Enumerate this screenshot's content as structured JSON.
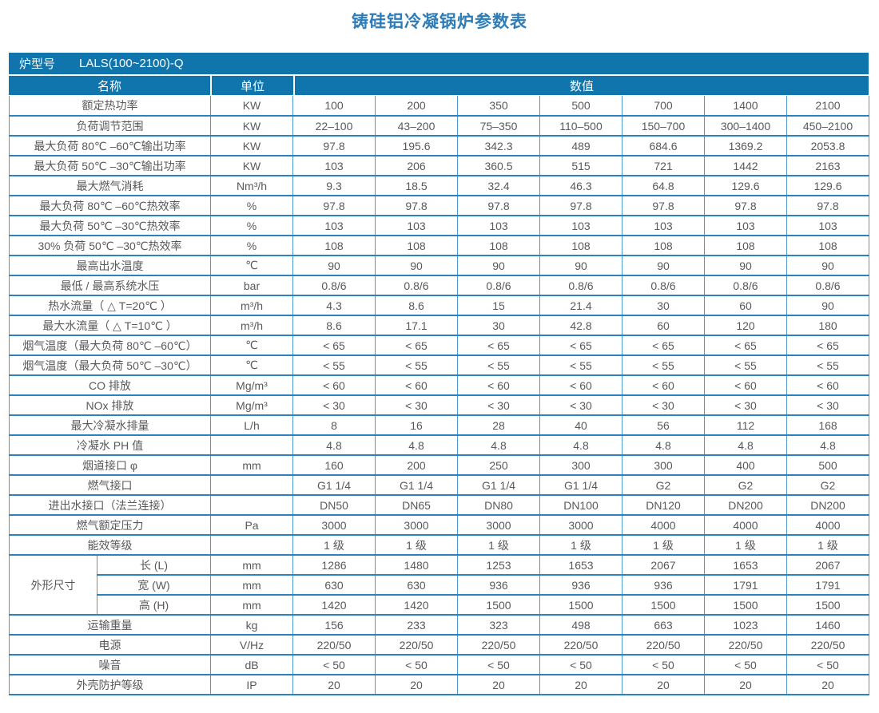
{
  "title": "铸硅铝冷凝锅炉参数表",
  "colors": {
    "header_bg": "#1175ad",
    "border_horizontal": "#2e81c1",
    "border_vertical": "#4e9bd1",
    "body_text": "#58595b",
    "title_text": "#2e7cb8"
  },
  "header": {
    "model_label": "炉型号",
    "model_value": "LALS(100~2100)-Q",
    "col_name": "名称",
    "col_unit": "单位",
    "col_values": "数值"
  },
  "table": {
    "rows": [
      {
        "name": "额定热功率",
        "unit": "KW",
        "values": [
          "100",
          "200",
          "350",
          "500",
          "700",
          "1400",
          "2100"
        ]
      },
      {
        "name": "负荷调节范围",
        "unit": "KW",
        "values": [
          "22–100",
          "43–200",
          "75–350",
          "110–500",
          "150–700",
          "300–1400",
          "450–2100"
        ]
      },
      {
        "name": "最大负荷 80℃ –60℃输出功率",
        "unit": "KW",
        "values": [
          "97.8",
          "195.6",
          "342.3",
          "489",
          "684.6",
          "1369.2",
          "2053.8"
        ]
      },
      {
        "name": "最大负荷 50℃ –30℃输出功率",
        "unit": "KW",
        "values": [
          "103",
          "206",
          "360.5",
          "515",
          "721",
          "1442",
          "2163"
        ]
      },
      {
        "name": "最大燃气消耗",
        "unit": "Nm³/h",
        "values": [
          "9.3",
          "18.5",
          "32.4",
          "46.3",
          "64.8",
          "129.6",
          "129.6"
        ]
      },
      {
        "name": "最大负荷 80℃ –60℃热效率",
        "unit": "%",
        "values": [
          "97.8",
          "97.8",
          "97.8",
          "97.8",
          "97.8",
          "97.8",
          "97.8"
        ]
      },
      {
        "name": "最大负荷 50℃ –30℃热效率",
        "unit": "%",
        "values": [
          "103",
          "103",
          "103",
          "103",
          "103",
          "103",
          "103"
        ]
      },
      {
        "name": "30% 负荷 50℃ –30℃热效率",
        "unit": "%",
        "values": [
          "108",
          "108",
          "108",
          "108",
          "108",
          "108",
          "108"
        ]
      },
      {
        "name": "最高出水温度",
        "unit": "℃",
        "values": [
          "90",
          "90",
          "90",
          "90",
          "90",
          "90",
          "90"
        ]
      },
      {
        "name": "最低 / 最高系统水压",
        "unit": "bar",
        "values": [
          "0.8/6",
          "0.8/6",
          "0.8/6",
          "0.8/6",
          "0.8/6",
          "0.8/6",
          "0.8/6"
        ]
      },
      {
        "name": "热水流量（ △ T=20℃ ）",
        "unit": "m³/h",
        "values": [
          "4.3",
          "8.6",
          "15",
          "21.4",
          "30",
          "60",
          "90"
        ]
      },
      {
        "name": "最大水流量（ △ T=10℃ ）",
        "unit": "m³/h",
        "values": [
          "8.6",
          "17.1",
          "30",
          "42.8",
          "60",
          "120",
          "180"
        ]
      },
      {
        "name": "烟气温度（最大负荷 80℃ –60℃）",
        "unit": "℃",
        "values": [
          "< 65",
          "< 65",
          "< 65",
          "< 65",
          "< 65",
          "< 65",
          "< 65"
        ]
      },
      {
        "name": "烟气温度（最大负荷 50℃ –30℃）",
        "unit": "℃",
        "values": [
          "< 55",
          "< 55",
          "< 55",
          "< 55",
          "< 55",
          "< 55",
          "< 55"
        ]
      },
      {
        "name": "CO 排放",
        "unit": "Mg/m³",
        "values": [
          "< 60",
          "< 60",
          "< 60",
          "< 60",
          "< 60",
          "< 60",
          "< 60"
        ]
      },
      {
        "name": "NOx 排放",
        "unit": "Mg/m³",
        "values": [
          "< 30",
          "< 30",
          "< 30",
          "< 30",
          "< 30",
          "< 30",
          "< 30"
        ]
      },
      {
        "name": "最大冷凝水排量",
        "unit": "L/h",
        "values": [
          "8",
          "16",
          "28",
          "40",
          "56",
          "112",
          "168"
        ]
      },
      {
        "name": "冷凝水 PH 值",
        "unit": "",
        "values": [
          "4.8",
          "4.8",
          "4.8",
          "4.8",
          "4.8",
          "4.8",
          "4.8"
        ]
      },
      {
        "name": "烟道接口 φ",
        "unit": "mm",
        "values": [
          "160",
          "200",
          "250",
          "300",
          "300",
          "400",
          "500"
        ]
      },
      {
        "name": "燃气接口",
        "unit": "",
        "values": [
          "G1 1/4",
          "G1 1/4",
          "G1 1/4",
          "G1 1/4",
          "G2",
          "G2",
          "G2"
        ]
      },
      {
        "name": "进出水接口（法兰连接）",
        "unit": "",
        "values": [
          "DN50",
          "DN65",
          "DN80",
          "DN100",
          "DN120",
          "DN200",
          "DN200"
        ]
      },
      {
        "name": "燃气额定压力",
        "unit": "Pa",
        "values": [
          "3000",
          "3000",
          "3000",
          "3000",
          "4000",
          "4000",
          "4000"
        ]
      },
      {
        "name": "能效等级",
        "unit": "",
        "values": [
          "1 级",
          "1 级",
          "1 级",
          "1 级",
          "1 级",
          "1 级",
          "1 级"
        ]
      },
      {
        "group": "外形尺寸",
        "group_span": 3,
        "sub": true,
        "name": "长 (L)",
        "unit": "mm",
        "values": [
          "1286",
          "1480",
          "1253",
          "1653",
          "2067",
          "1653",
          "2067"
        ]
      },
      {
        "sub": true,
        "name": "宽 (W)",
        "unit": "mm",
        "values": [
          "630",
          "630",
          "936",
          "936",
          "936",
          "1791",
          "1791"
        ]
      },
      {
        "sub": true,
        "name": "高 (H)",
        "unit": "mm",
        "values": [
          "1420",
          "1420",
          "1500",
          "1500",
          "1500",
          "1500",
          "1500"
        ]
      },
      {
        "name": "运输重量",
        "unit": "kg",
        "values": [
          "156",
          "233",
          "323",
          "498",
          "663",
          "1023",
          "1460"
        ]
      },
      {
        "name": "电源",
        "unit": "V/Hz",
        "values": [
          "220/50",
          "220/50",
          "220/50",
          "220/50",
          "220/50",
          "220/50",
          "220/50"
        ]
      },
      {
        "name": "噪音",
        "unit": "dB",
        "values": [
          "< 50",
          "< 50",
          "< 50",
          "< 50",
          "< 50",
          "< 50",
          "< 50"
        ]
      },
      {
        "name": "外壳防护等级",
        "unit": "IP",
        "values": [
          "20",
          "20",
          "20",
          "20",
          "20",
          "20",
          "20"
        ]
      }
    ]
  }
}
